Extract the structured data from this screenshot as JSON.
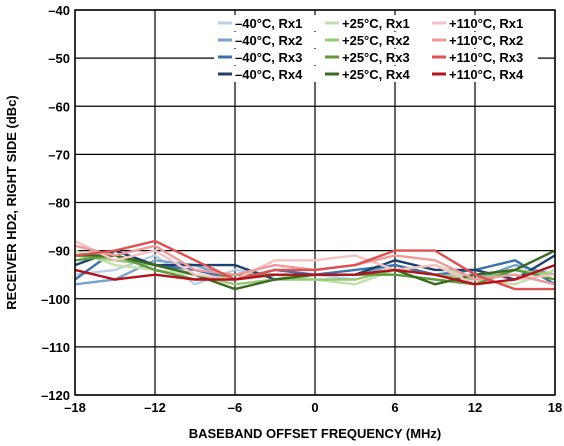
{
  "chart_data": {
    "type": "line",
    "title": "",
    "xlabel": "BASEBAND OFFSET FREQUENCY (MHz)",
    "ylabel": "RECEIVER HD2, RIGHT SIDE (dBc)",
    "xlim": [
      -18,
      18
    ],
    "ylim": [
      -120,
      -40
    ],
    "xticks": [
      -18,
      -12,
      -6,
      0,
      6,
      12,
      18
    ],
    "yticks": [
      -40,
      -50,
      -60,
      -70,
      -80,
      -90,
      -100,
      -110,
      -120
    ],
    "xtick_labels": [
      "–18",
      "–12",
      "–6",
      "0",
      "6",
      "12",
      "18"
    ],
    "ytick_labels": [
      "–40",
      "–50",
      "–60",
      "–70",
      "–80",
      "–90",
      "–100",
      "–110",
      "–120"
    ],
    "grid": true,
    "legend_position": "top-right",
    "x": [
      -18,
      -15,
      -12,
      -9,
      -6,
      -3,
      0,
      3,
      6,
      9,
      12,
      15,
      18
    ],
    "series": [
      {
        "name": "–40°C, Rx1",
        "color": "#b8cfe8",
        "values": [
          -95,
          -94,
          -91,
          -97,
          -94,
          -95,
          -95,
          -96,
          -94,
          -95,
          -95,
          -95,
          -97
        ]
      },
      {
        "name": "–40°C, Rx2",
        "color": "#7aa3cc",
        "values": [
          -97,
          -96,
          -92,
          -93,
          -96,
          -95,
          -95,
          -95,
          -93,
          -95,
          -96,
          -93,
          -95
        ]
      },
      {
        "name": "–40°C, Rx3",
        "color": "#3a73ac",
        "values": [
          -96,
          -90,
          -93,
          -94,
          -96,
          -94,
          -95,
          -94,
          -93,
          -95,
          -94,
          -92,
          -97
        ]
      },
      {
        "name": "–40°C, Rx4",
        "color": "#1f3f6e",
        "values": [
          -93,
          -90,
          -93,
          -93,
          -93,
          -96,
          -95,
          -95,
          -92,
          -94,
          -94,
          -96,
          -91
        ]
      },
      {
        "name": "+25°C, Rx1",
        "color": "#c2e0a8",
        "values": [
          -90,
          -93,
          -94,
          -95,
          -96,
          -95,
          -96,
          -97,
          -94,
          -93,
          -96,
          -97,
          -94
        ]
      },
      {
        "name": "+25°C, Rx2",
        "color": "#98c878",
        "values": [
          -91,
          -92,
          -93,
          -95,
          -97,
          -96,
          -96,
          -96,
          -94,
          -95,
          -96,
          -94,
          -95
        ]
      },
      {
        "name": "+25°C, Rx3",
        "color": "#5f9a3c",
        "values": [
          -92,
          -91,
          -94,
          -96,
          -95,
          -95,
          -95,
          -95,
          -95,
          -96,
          -97,
          -94,
          -96
        ]
      },
      {
        "name": "+25°C, Rx4",
        "color": "#3a6a1f",
        "values": [
          -91,
          -91,
          -93,
          -95,
          -98,
          -96,
          -95,
          -95,
          -94,
          -97,
          -95,
          -94,
          -90
        ]
      },
      {
        "name": "+110°C, Rx1",
        "color": "#f5c2c2",
        "values": [
          -88,
          -92,
          -90,
          -95,
          -96,
          -92,
          -92,
          -91,
          -94,
          -93,
          -97,
          -96,
          -95
        ]
      },
      {
        "name": "+110°C, Rx2",
        "color": "#ef9a9a",
        "values": [
          -89,
          -91,
          -89,
          -94,
          -95,
          -93,
          -94,
          -93,
          -91,
          -92,
          -96,
          -95,
          -97
        ]
      },
      {
        "name": "+110°C, Rx3",
        "color": "#e05050",
        "values": [
          -91,
          -90,
          -88,
          -92,
          -96,
          -94,
          -94,
          -93,
          -90,
          -90,
          -95,
          -98,
          -98
        ]
      },
      {
        "name": "+110°C, Rx4",
        "color": "#b3121b",
        "values": [
          -94,
          -96,
          -95,
          -96,
          -96,
          -95,
          -95,
          -95,
          -94,
          -95,
          -97,
          -96,
          -93
        ]
      }
    ]
  }
}
